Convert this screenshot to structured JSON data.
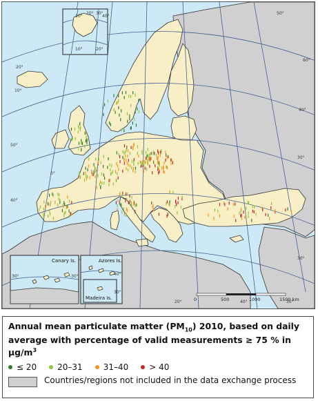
{
  "map": {
    "graticule_labels": [
      "50°",
      "40°",
      "30°",
      "30°",
      "20°",
      "10°",
      "0°",
      "10°",
      "20°",
      "40°",
      "50°",
      "60°",
      "40°",
      "30°"
    ],
    "svalbard_labels": [
      "10°",
      "20°",
      "30°",
      "40°",
      "10°",
      "20°"
    ],
    "insets": {
      "canary": {
        "title": "Canary Is."
      },
      "azores": {
        "title": "Azores Is."
      },
      "madeira": {
        "title": "Madeira Is."
      },
      "canary_ticks": [
        "30°",
        "-30°"
      ],
      "azores_ticks": [
        "40°",
        "30°"
      ]
    },
    "scale_bar": {
      "labels": [
        "0",
        "500",
        "1000",
        "1500 km"
      ]
    },
    "colors": {
      "sea": "#cde9f5",
      "included_land": "#f8efc6",
      "excluded_land": "#d0d0d0",
      "le20": "#2e7d32",
      "c20_31": "#8dc63f",
      "c31_40": "#f7941d",
      "gt40": "#c1272d"
    }
  },
  "legend": {
    "title_part1": "Annual mean particulate matter (PM",
    "title_sub": "10",
    "title_part2": ") 2010, based on daily average with percentage of valid measurements ≥ 75 % in µg/m",
    "title_sup": "3",
    "classes": [
      {
        "label": "≤ 20",
        "color": "#2e7d32"
      },
      {
        "label": "20–31",
        "color": "#8dc63f"
      },
      {
        "label": "31–40",
        "color": "#f7941d"
      },
      {
        "label": "> 40",
        "color": "#c1272d"
      }
    ],
    "excluded_label": "Countries/regions not included in the data exchange process"
  }
}
